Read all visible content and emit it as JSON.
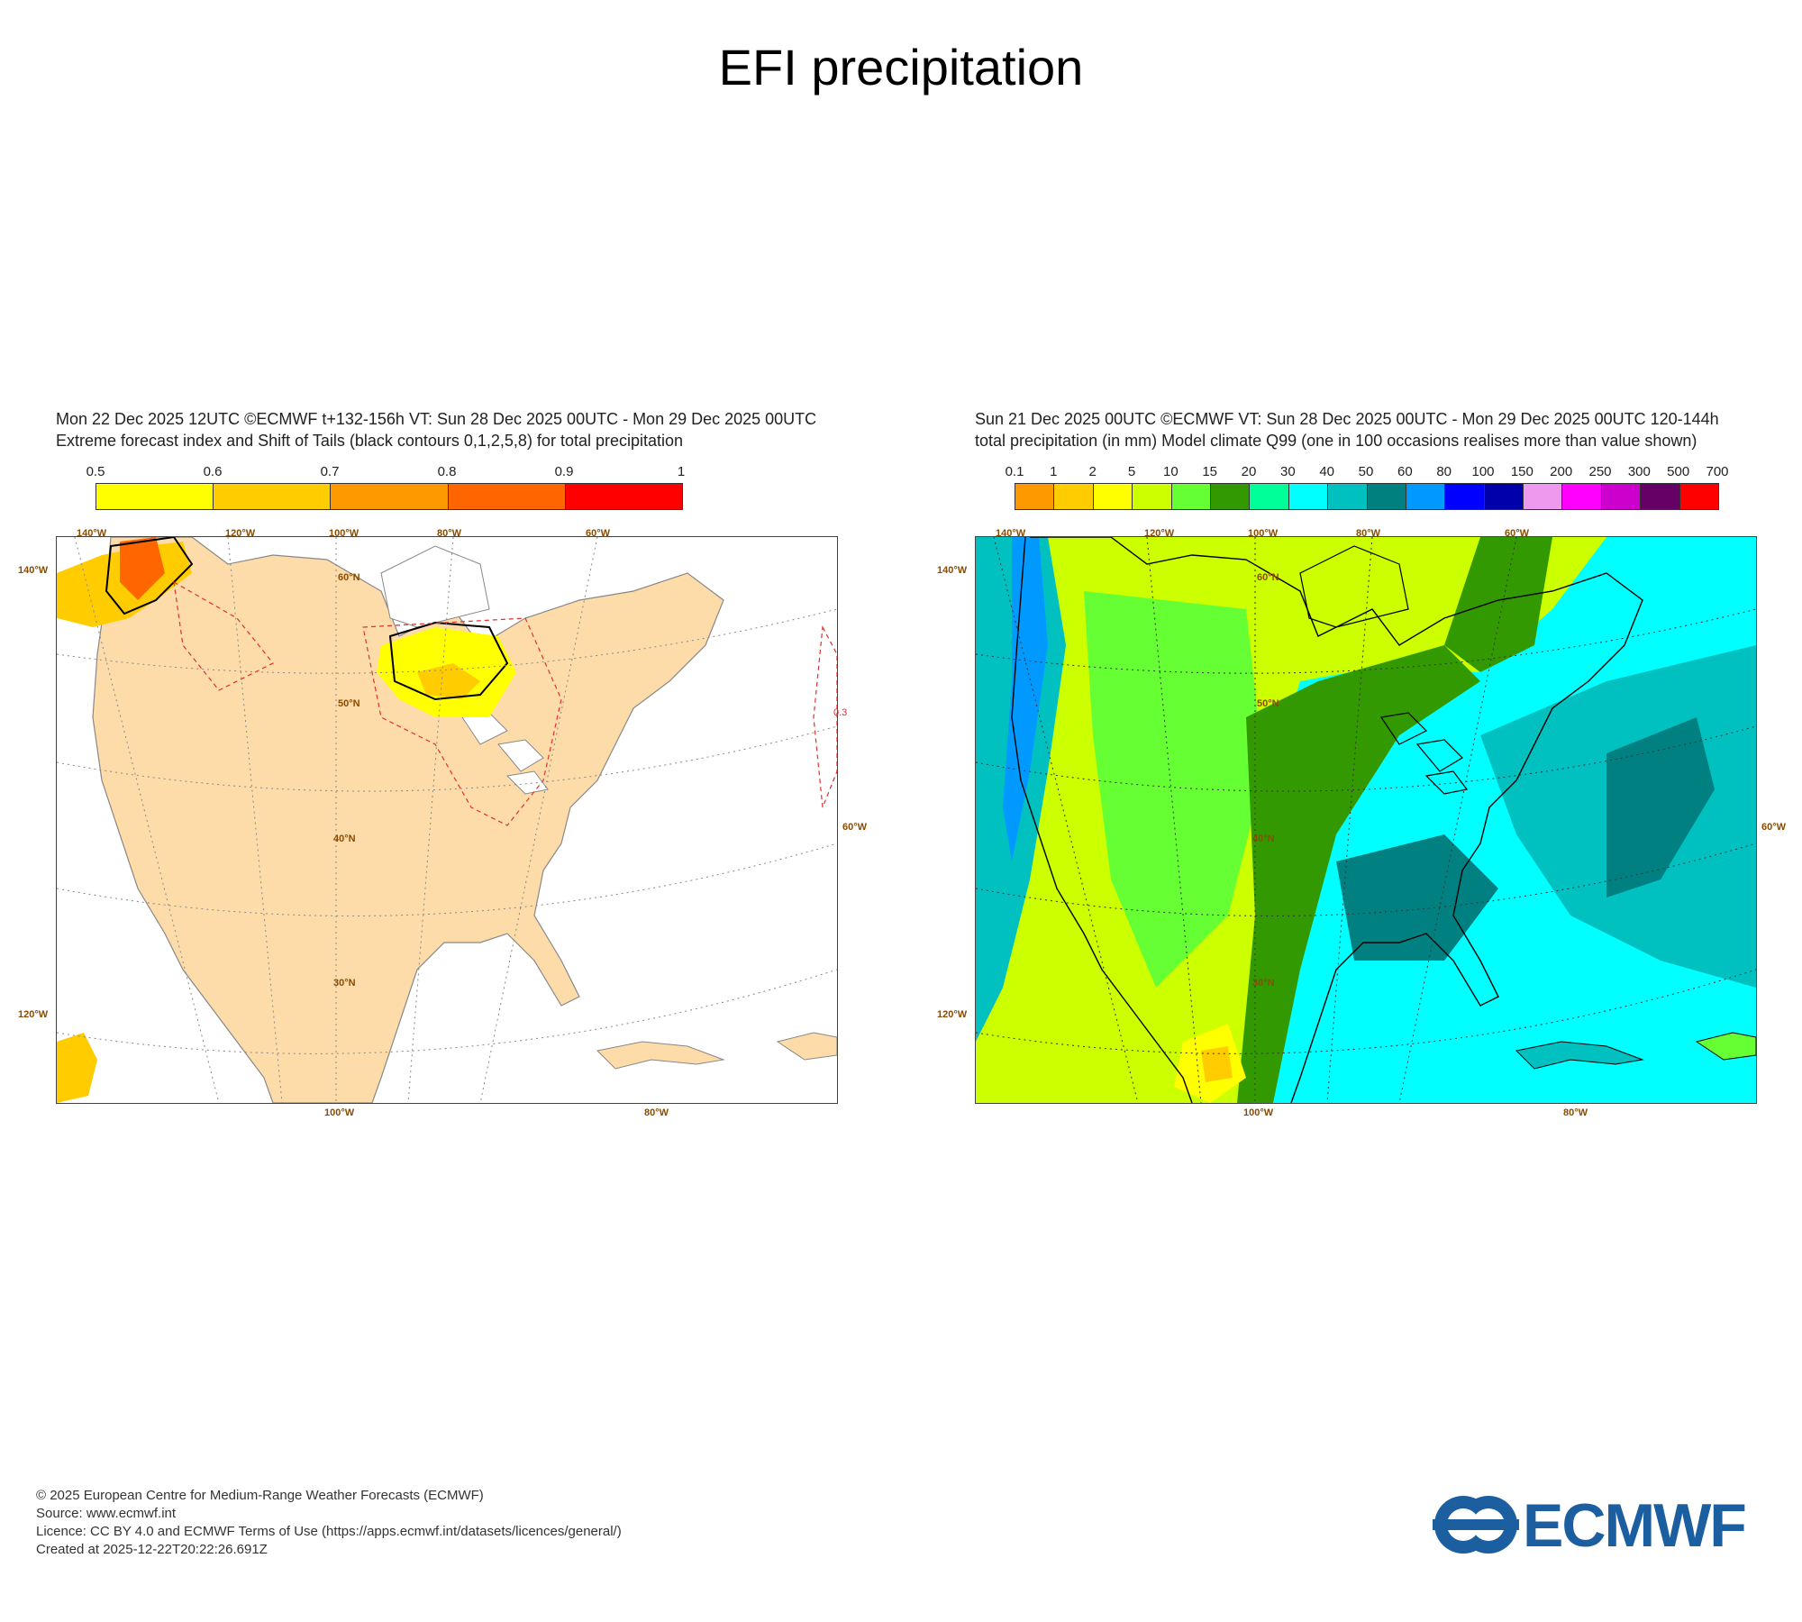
{
  "title": "EFI precipitation",
  "left_panel": {
    "header_line1": "Mon 22 Dec 2025 12UTC ©ECMWF t+132-156h  VT: Sun 28 Dec 2025 00UTC - Mon 29 Dec 2025 00UTC",
    "header_line2": "Extreme forecast index and Shift of Tails (black contours 0,1,2,5,8) for total precipitation",
    "colorbar": {
      "labels": [
        "0.5",
        "0.6",
        "0.7",
        "0.8",
        "0.9",
        "1"
      ],
      "colors": [
        "#ffff00",
        "#ffcc00",
        "#ff9900",
        "#ff6600",
        "#ff0000"
      ]
    },
    "grid_labels": {
      "top": [
        "140°W",
        "120°W",
        "100°W",
        "80°W",
        "60°W"
      ],
      "left": [
        "140°W",
        "120°W"
      ],
      "right": [
        "60°W"
      ],
      "bottom": [
        "100°W",
        "80°W"
      ],
      "inner": [
        "60°N",
        "50°N",
        "40°N",
        "30°N"
      ]
    },
    "contour_label": "0.3",
    "land_color": "#fddcaa"
  },
  "right_panel": {
    "header_line1": "Sun 21 Dec 2025 00UTC ©ECMWF VT: Sun 28 Dec 2025 00UTC - Mon 29 Dec 2025 00UTC   120-144h",
    "header_line2": "total precipitation (in mm)  Model climate Q99 (one in 100 occasions realises more than value shown)",
    "colorbar": {
      "labels": [
        "0.1",
        "1",
        "2",
        "5",
        "10",
        "15",
        "20",
        "30",
        "40",
        "50",
        "60",
        "80",
        "100",
        "150",
        "200",
        "250",
        "300",
        "500",
        "700"
      ],
      "colors": [
        "#ff9900",
        "#ffcc00",
        "#ffff00",
        "#ccff00",
        "#66ff33",
        "#339900",
        "#00ff99",
        "#00ffff",
        "#00c0c0",
        "#008080",
        "#0099ff",
        "#0000ff",
        "#0000aa",
        "#ee99ee",
        "#ff00ff",
        "#cc00cc",
        "#660066",
        "#ff0000"
      ]
    },
    "grid_labels": {
      "top": [
        "140°W",
        "120°W",
        "100°W",
        "80°W",
        "60°W"
      ],
      "left": [
        "140°W",
        "120°W"
      ],
      "right": [
        "60°W"
      ],
      "bottom": [
        "100°W",
        "80°W"
      ],
      "inner": [
        "60°N",
        "50°N",
        "40°N",
        "30°N"
      ]
    }
  },
  "footer": {
    "line1": "© 2025 European Centre for Medium-Range Weather Forecasts (ECMWF)",
    "line2": "Source: www.ecmwf.int",
    "line3": "Licence: CC BY 4.0 and ECMWF Terms of Use (https://apps.ecmwf.int/datasets/licences/general/)",
    "line4": "Created at 2025-12-22T20:22:26.691Z"
  },
  "logo": {
    "text": "ECMWF",
    "color": "#1c5fa0"
  }
}
